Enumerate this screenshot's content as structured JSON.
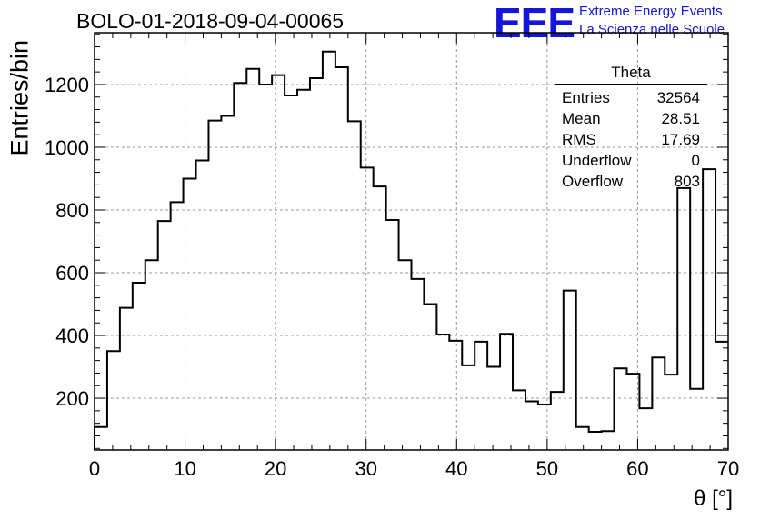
{
  "header": {
    "title": "BOLO-01-2018-09-04-00065",
    "logo_mark": "EEE",
    "logo_line1": "Extreme Energy Events",
    "logo_line2": "La Scienza nelle Scuole"
  },
  "stats_box": {
    "name": "Theta",
    "rows": [
      {
        "label": "Entries",
        "value": "32564"
      },
      {
        "label": "Mean",
        "value": "28.51"
      },
      {
        "label": "RMS",
        "value": "17.69"
      },
      {
        "label": "Underflow",
        "value": "0"
      },
      {
        "label": "Overflow",
        "value": "803"
      }
    ]
  },
  "chart_data": {
    "type": "bar",
    "style": "step-histogram",
    "xlabel": "θ [°]",
    "ylabel": "Entries/bin",
    "xlim": [
      0,
      70
    ],
    "ylim": [
      35,
      1365
    ],
    "x_ticks": [
      0,
      10,
      20,
      30,
      40,
      50,
      60,
      70
    ],
    "y_ticks": [
      200,
      400,
      600,
      800,
      1000,
      1200
    ],
    "grid": true,
    "bin_edges": [
      0,
      1.4,
      2.8,
      4.2,
      5.6,
      7,
      8.4,
      9.8,
      11.2,
      12.6,
      14,
      15.4,
      16.8,
      18.2,
      19.6,
      21,
      22.4,
      23.8,
      25.2,
      26.6,
      28,
      29.4,
      30.8,
      32.2,
      33.6,
      35,
      36.4,
      37.8,
      39.2,
      40.6,
      42,
      43.4,
      44.8,
      46.2,
      47.6,
      49,
      50.4,
      51.8,
      53.2,
      54.6,
      56,
      57.4,
      58.8,
      60.2,
      61.6,
      63,
      64.4,
      65.8,
      67.2,
      68.6,
      70
    ],
    "values": [
      108,
      350,
      488,
      568,
      640,
      765,
      825,
      900,
      958,
      1085,
      1100,
      1205,
      1250,
      1200,
      1230,
      1165,
      1183,
      1220,
      1305,
      1255,
      1083,
      935,
      875,
      768,
      640,
      580,
      500,
      403,
      383,
      305,
      380,
      300,
      405,
      225,
      190,
      180,
      220,
      543,
      108,
      93,
      95,
      295,
      278,
      168,
      330,
      275,
      870,
      230,
      930,
      380
    ]
  }
}
